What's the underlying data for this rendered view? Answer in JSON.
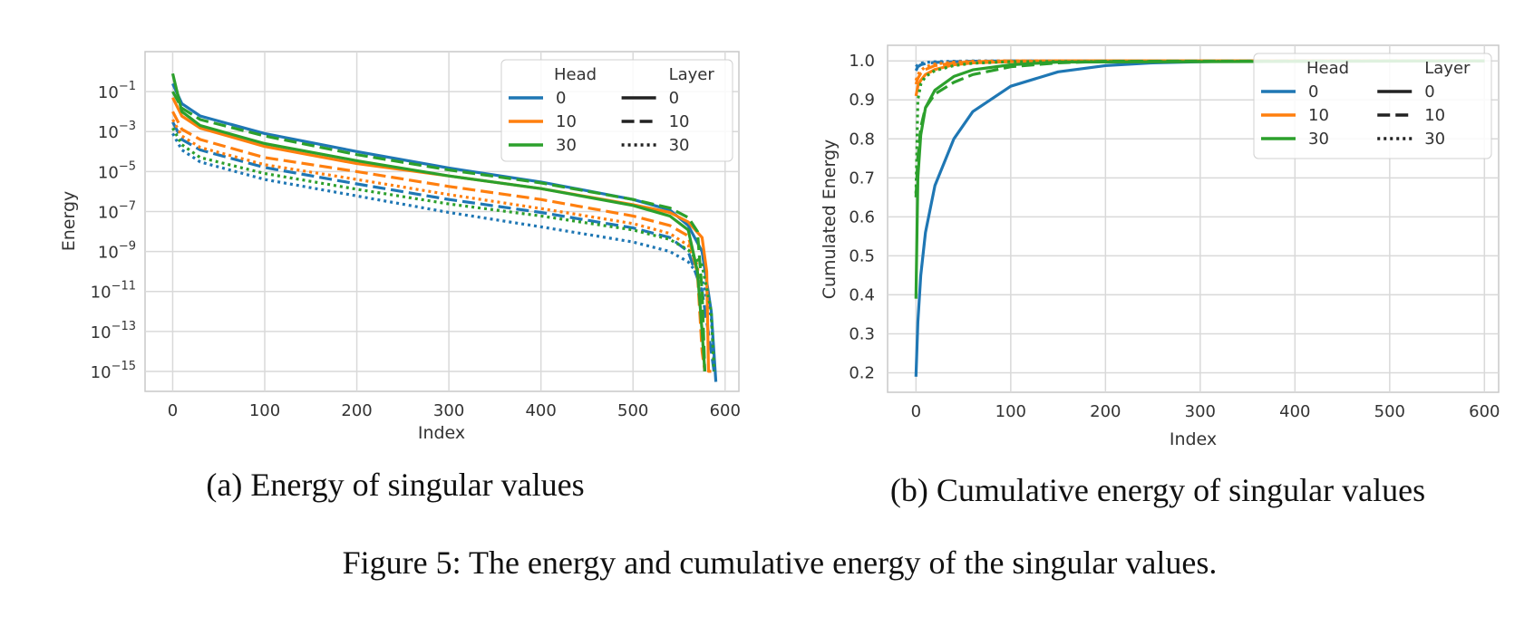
{
  "figure": {
    "caption": "Figure 5: The energy and cumulative energy of the singular values."
  },
  "colors": {
    "head_0": "#1f77b4",
    "head_10": "#ff7f0e",
    "head_30": "#2ca02c",
    "grid": "#d9d9d9",
    "frame": "#c8c8c8"
  },
  "legend": {
    "head_title": "Head",
    "layer_title": "Layer",
    "heads": [
      "0",
      "10",
      "30"
    ],
    "layers": [
      "0",
      "10",
      "30"
    ],
    "layer_styles": [
      "solid",
      "dashed",
      "dotted"
    ]
  },
  "chart_data": [
    {
      "id": "a",
      "type": "line",
      "caption": "(a) Energy of singular values",
      "xlabel": "Index",
      "ylabel": "Energy",
      "yscale": "log",
      "xlim": [
        -30,
        615
      ],
      "ylim": [
        1e-16,
        10
      ],
      "xticks": [
        "0",
        "100",
        "200",
        "300",
        "400",
        "500",
        "600"
      ],
      "ytick_exponents": [
        -1,
        -3,
        -5,
        -7,
        -9,
        -11,
        -13,
        -15
      ],
      "grid": true,
      "legend_position": "top-right",
      "series": [
        {
          "head": "0",
          "layer": "0",
          "x": [
            0,
            10,
            30,
            100,
            200,
            300,
            400,
            500,
            540,
            560,
            575,
            585,
            590
          ],
          "y": [
            0.25,
            0.025,
            0.006,
            0.0008,
            0.0001,
            1.5e-05,
            3e-06,
            4e-07,
            1.2e-07,
            2e-08,
            1e-09,
            1e-12,
            3e-16
          ]
        },
        {
          "head": "0",
          "layer": "10",
          "x": [
            0,
            10,
            30,
            100,
            200,
            300,
            400,
            500,
            540,
            560,
            575,
            585,
            588
          ],
          "y": [
            0.003,
            0.0004,
            0.00012,
            1.6e-05,
            2.4e-06,
            4e-07,
            9e-08,
            1.5e-08,
            5e-09,
            1e-09,
            1e-11,
            1e-14,
            1e-15
          ]
        },
        {
          "head": "0",
          "layer": "30",
          "x": [
            0,
            10,
            30,
            100,
            200,
            300,
            400,
            500,
            540,
            560,
            575,
            585,
            588
          ],
          "y": [
            0.0008,
            0.00012,
            3e-05,
            4e-06,
            6e-07,
            9e-08,
            1.7e-08,
            3e-09,
            1e-09,
            3e-10,
            4e-11,
            5e-13,
            3e-15
          ]
        },
        {
          "head": "10",
          "layer": "0",
          "x": [
            0,
            10,
            30,
            100,
            200,
            300,
            400,
            500,
            540,
            560,
            575,
            580,
            582,
            585
          ],
          "y": [
            0.05,
            0.006,
            0.0015,
            0.00018,
            2.5e-05,
            6e-06,
            1.4e-06,
            2.2e-07,
            9e-08,
            3e-08,
            5e-09,
            1e-10,
            1e-15,
            1e-15
          ]
        },
        {
          "head": "10",
          "layer": "10",
          "x": [
            0,
            10,
            30,
            100,
            200,
            300,
            400,
            500,
            540,
            560,
            570,
            575,
            578
          ],
          "y": [
            0.01,
            0.0013,
            0.0004,
            5e-05,
            1e-05,
            1.8e-06,
            4e-07,
            6e-08,
            2e-08,
            6e-09,
            8e-11,
            1e-14,
            1e-15
          ]
        },
        {
          "head": "10",
          "layer": "30",
          "x": [
            0,
            10,
            30,
            100,
            200,
            300,
            400,
            500,
            540,
            560,
            570,
            575,
            578
          ],
          "y": [
            0.004,
            0.0006,
            0.00016,
            2.2e-05,
            4e-06,
            7e-07,
            1.4e-07,
            2.5e-08,
            8e-09,
            2e-09,
            2e-10,
            1e-13,
            1e-15
          ]
        },
        {
          "head": "30",
          "layer": "0",
          "x": [
            0,
            10,
            30,
            100,
            200,
            300,
            400,
            500,
            540,
            560,
            570,
            575,
            578
          ],
          "y": [
            0.8,
            0.01,
            0.002,
            0.00025,
            3.5e-05,
            6e-06,
            1.4e-06,
            2e-07,
            6e-08,
            1.2e-08,
            1e-10,
            1e-13,
            1e-15
          ]
        },
        {
          "head": "30",
          "layer": "10",
          "x": [
            0,
            10,
            30,
            100,
            200,
            300,
            400,
            500,
            540,
            560,
            570,
            575,
            578
          ],
          "y": [
            0.1,
            0.015,
            0.004,
            0.0006,
            7e-05,
            1.2e-05,
            2.7e-06,
            4e-07,
            1.5e-07,
            5e-08,
            1e-08,
            1e-11,
            1e-15
          ]
        },
        {
          "head": "30",
          "layer": "30",
          "x": [
            0,
            10,
            30,
            100,
            200,
            300,
            400,
            500,
            540,
            560,
            575,
            585,
            588
          ],
          "y": [
            0.0015,
            0.00022,
            5e-05,
            8e-06,
            1.3e-06,
            2.4e-07,
            6e-08,
            1.2e-08,
            4e-09,
            1.2e-09,
            2e-10,
            1e-12,
            1e-15
          ]
        }
      ]
    },
    {
      "id": "b",
      "type": "line",
      "caption": "(b) Cumulative energy of singular values",
      "xlabel": "Index",
      "ylabel": "Cumulated Energy",
      "xlim": [
        -30,
        615
      ],
      "ylim": [
        0.15,
        1.04
      ],
      "xticks": [
        "0",
        "100",
        "200",
        "300",
        "400",
        "500",
        "600"
      ],
      "yticks": [
        "0.2",
        "0.3",
        "0.4",
        "0.5",
        "0.6",
        "0.7",
        "0.8",
        "0.9",
        "1.0"
      ],
      "grid": true,
      "legend_position": "top-right",
      "series": [
        {
          "head": "0",
          "layer": "0",
          "x": [
            0,
            2,
            5,
            10,
            20,
            40,
            60,
            100,
            150,
            200,
            250,
            300,
            350,
            600
          ],
          "y": [
            0.19,
            0.33,
            0.45,
            0.56,
            0.68,
            0.8,
            0.87,
            0.935,
            0.972,
            0.988,
            0.995,
            0.998,
            1.0,
            1.0
          ]
        },
        {
          "head": "0",
          "layer": "10",
          "x": [
            0,
            2,
            5,
            10,
            20,
            40,
            60,
            100,
            600
          ],
          "y": [
            0.975,
            0.985,
            0.99,
            0.993,
            0.996,
            0.998,
            0.999,
            1.0,
            1.0
          ]
        },
        {
          "head": "0",
          "layer": "30",
          "x": [
            0,
            2,
            5,
            10,
            20,
            40,
            60,
            100,
            600
          ],
          "y": [
            0.985,
            0.99,
            0.994,
            0.996,
            0.998,
            0.999,
            1.0,
            1.0,
            1.0
          ]
        },
        {
          "head": "10",
          "layer": "0",
          "x": [
            0,
            2,
            5,
            10,
            20,
            40,
            60,
            100,
            150,
            600
          ],
          "y": [
            0.91,
            0.935,
            0.95,
            0.965,
            0.978,
            0.99,
            0.995,
            0.998,
            1.0,
            1.0
          ]
        },
        {
          "head": "10",
          "layer": "10",
          "x": [
            0,
            2,
            5,
            10,
            20,
            40,
            60,
            100,
            600
          ],
          "y": [
            0.94,
            0.955,
            0.968,
            0.978,
            0.988,
            0.995,
            0.998,
            1.0,
            1.0
          ]
        },
        {
          "head": "10",
          "layer": "30",
          "x": [
            0,
            2,
            5,
            10,
            20,
            40,
            60,
            100,
            600
          ],
          "y": [
            0.95,
            0.965,
            0.975,
            0.985,
            0.992,
            0.997,
            0.999,
            1.0,
            1.0
          ]
        },
        {
          "head": "30",
          "layer": "0",
          "x": [
            0,
            2,
            5,
            10,
            20,
            40,
            60,
            100,
            150,
            600
          ],
          "y": [
            0.39,
            0.7,
            0.81,
            0.88,
            0.925,
            0.96,
            0.977,
            0.99,
            0.997,
            1.0
          ]
        },
        {
          "head": "30",
          "layer": "10",
          "x": [
            0,
            2,
            5,
            10,
            20,
            40,
            60,
            100,
            150,
            200,
            600
          ],
          "y": [
            0.65,
            0.75,
            0.83,
            0.88,
            0.915,
            0.945,
            0.965,
            0.985,
            0.995,
            0.999,
            1.0
          ]
        },
        {
          "head": "30",
          "layer": "30",
          "x": [
            0,
            2,
            5,
            10,
            20,
            40,
            60,
            100,
            600
          ],
          "y": [
            0.66,
            0.9,
            0.94,
            0.96,
            0.975,
            0.988,
            0.994,
            0.998,
            1.0
          ]
        }
      ]
    }
  ]
}
